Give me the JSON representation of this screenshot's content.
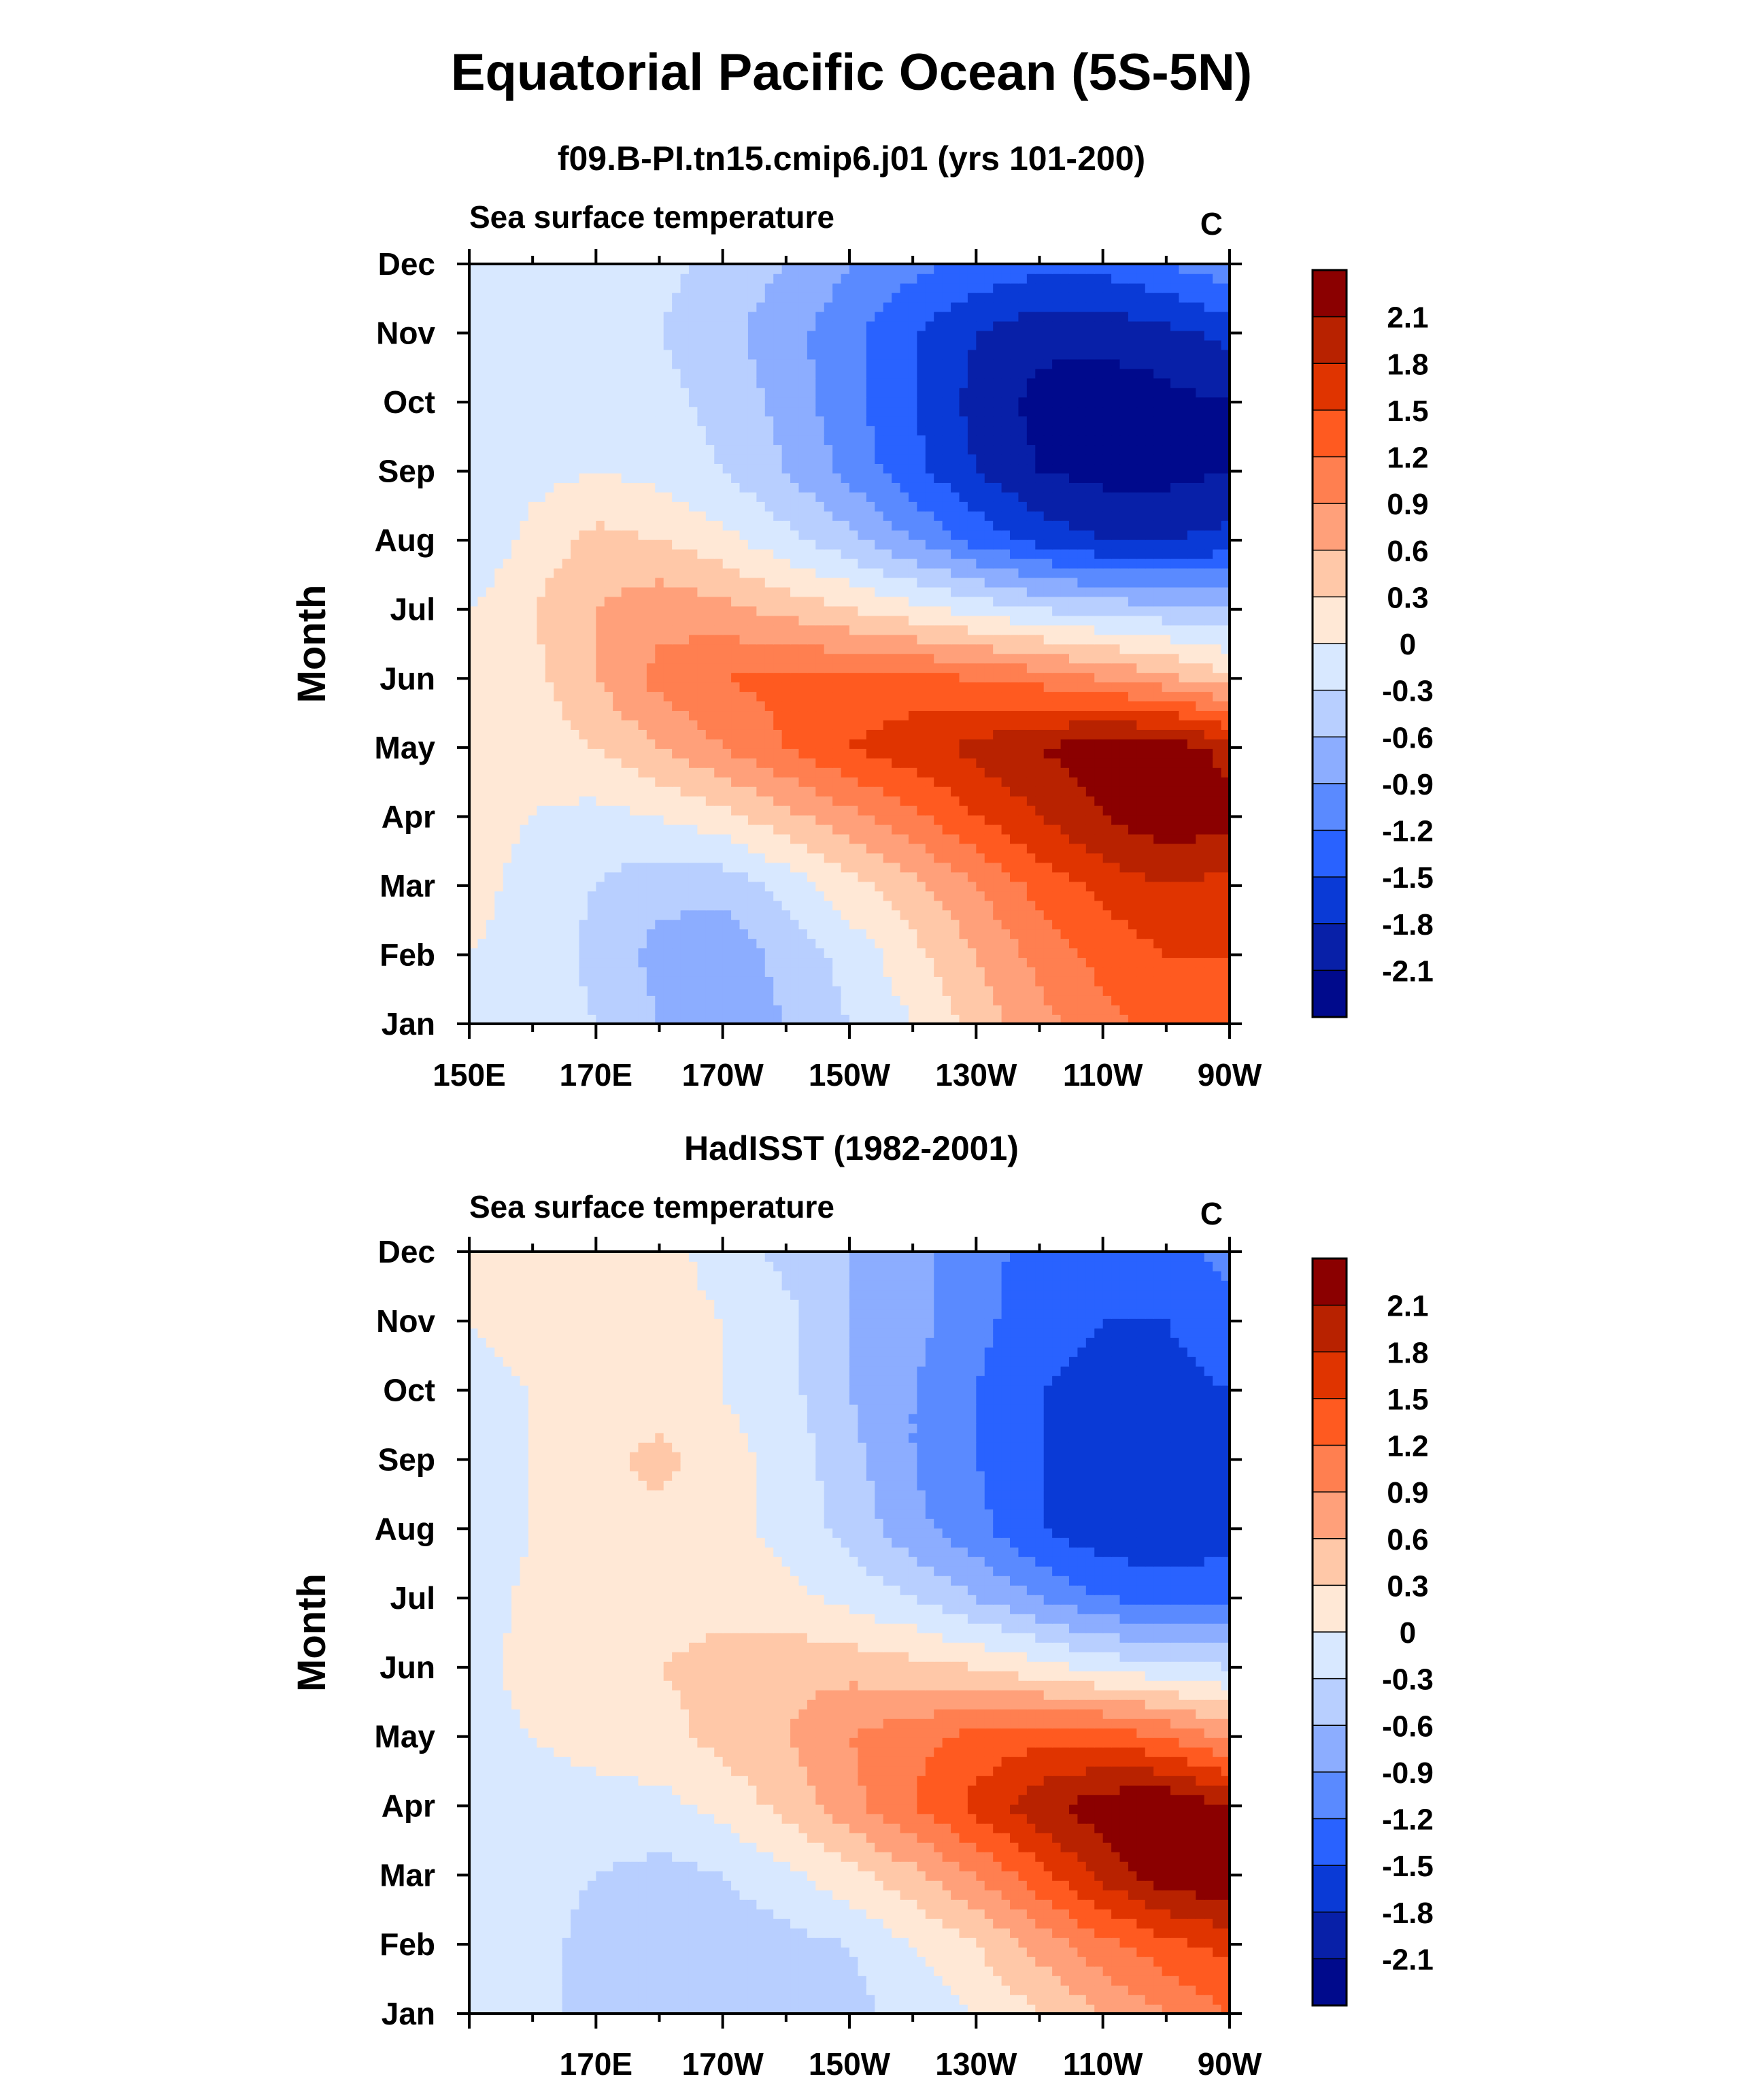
{
  "title": "Equatorial Pacific Ocean (5S-5N)",
  "colorbar_levels": [
    "2.1",
    "1.8",
    "1.5",
    "1.2",
    "0.9",
    "0.6",
    "0.3",
    "0",
    "-0.3",
    "-0.6",
    "-0.9",
    "-1.2",
    "-1.5",
    "-1.8",
    "-2.1"
  ],
  "colorbar_colors": [
    "#8b0000",
    "#b82200",
    "#e03400",
    "#ff5a20",
    "#ff7f50",
    "#ffa07a",
    "#ffc8a8",
    "#ffe8d6",
    "#d8e8ff",
    "#b8cfff",
    "#8cadff",
    "#5a8aff",
    "#2962ff",
    "#0a3ad6",
    "#0820a8",
    "#000a8c"
  ],
  "chart_data": [
    {
      "type": "heatmap",
      "title": "f09.B-PI.tn15.cmip6.j01 (yrs 101-200)",
      "left_label": "Sea surface temperature",
      "units": "C",
      "ylabel": "Month",
      "y_categories": [
        "Jan",
        "Feb",
        "Mar",
        "Apr",
        "May",
        "Jun",
        "Jul",
        "Aug",
        "Sep",
        "Oct",
        "Nov",
        "Dec"
      ],
      "x_tick_labels": [
        "150E",
        "170E",
        "170W",
        "150W",
        "130W",
        "110W",
        "90W"
      ],
      "x_range_lon": [
        150,
        270
      ],
      "levels": [
        -2.1,
        -1.8,
        -1.5,
        -1.2,
        -0.9,
        -0.6,
        -0.3,
        0,
        0.3,
        0.6,
        0.9,
        1.2,
        1.5,
        1.8,
        2.1
      ],
      "lon": [
        150,
        160,
        170,
        180,
        190,
        200,
        210,
        220,
        230,
        240,
        250,
        260,
        270
      ],
      "values": [
        [
          0.0,
          -0.1,
          -0.3,
          -0.6,
          -0.8,
          -0.6,
          -0.3,
          0.0,
          0.4,
          0.8,
          1.1,
          1.3,
          1.3
        ],
        [
          0.0,
          -0.1,
          -0.4,
          -0.7,
          -0.8,
          -0.5,
          -0.2,
          0.2,
          0.6,
          1.0,
          1.3,
          1.5,
          1.5
        ],
        [
          0.1,
          -0.1,
          -0.3,
          -0.5,
          -0.5,
          -0.2,
          0.2,
          0.5,
          0.9,
          1.3,
          1.6,
          1.8,
          1.7
        ],
        [
          0.1,
          0.0,
          -0.1,
          0.0,
          0.2,
          0.5,
          0.8,
          1.1,
          1.5,
          1.8,
          2.1,
          2.3,
          2.2
        ],
        [
          0.1,
          0.1,
          0.3,
          0.6,
          0.9,
          1.2,
          1.5,
          1.7,
          1.9,
          2.1,
          2.3,
          2.3,
          2.0
        ],
        [
          0.1,
          0.2,
          0.6,
          1.0,
          1.2,
          1.3,
          1.3,
          1.3,
          1.2,
          1.1,
          0.9,
          0.7,
          0.4
        ],
        [
          0.0,
          0.3,
          0.6,
          0.8,
          0.7,
          0.5,
          0.3,
          0.1,
          -0.1,
          -0.3,
          -0.4,
          -0.5,
          -0.6
        ],
        [
          -0.3,
          0.1,
          0.4,
          0.3,
          0.1,
          -0.2,
          -0.5,
          -0.9,
          -1.3,
          -1.6,
          -1.8,
          -1.8,
          -1.7
        ],
        [
          -0.1,
          -0.1,
          0.0,
          -0.1,
          -0.3,
          -0.6,
          -1.0,
          -1.4,
          -1.8,
          -2.1,
          -2.2,
          -2.2,
          -2.1
        ],
        [
          -0.1,
          -0.1,
          -0.1,
          -0.2,
          -0.4,
          -0.7,
          -1.1,
          -1.5,
          -1.9,
          -2.2,
          -2.3,
          -2.2,
          -2.1
        ],
        [
          -0.1,
          -0.1,
          -0.1,
          -0.3,
          -0.5,
          -0.8,
          -1.1,
          -1.5,
          -1.8,
          -2.0,
          -2.0,
          -1.9,
          -1.7
        ],
        [
          0.0,
          -0.1,
          -0.1,
          -0.2,
          -0.4,
          -0.6,
          -0.9,
          -1.1,
          -1.3,
          -1.4,
          -1.4,
          -1.2,
          -1.0
        ]
      ]
    },
    {
      "type": "heatmap",
      "title": "HadISST (1982-2001)",
      "left_label": "Sea surface temperature",
      "units": "C",
      "ylabel": "Month",
      "y_categories": [
        "Jan",
        "Feb",
        "Mar",
        "Apr",
        "May",
        "Jun",
        "Jul",
        "Aug",
        "Sep",
        "Oct",
        "Nov",
        "Dec"
      ],
      "x_tick_labels": [
        "170E",
        "170W",
        "150W",
        "130W",
        "110W",
        "90W"
      ],
      "x_range_lon": [
        150,
        270
      ],
      "levels": [
        -2.1,
        -1.8,
        -1.5,
        -1.2,
        -0.9,
        -0.6,
        -0.3,
        0,
        0.3,
        0.6,
        0.9,
        1.2,
        1.5,
        1.8,
        2.1
      ],
      "lon": [
        150,
        160,
        170,
        180,
        190,
        200,
        210,
        220,
        230,
        240,
        250,
        260,
        270
      ],
      "values": [
        [
          0.0,
          -0.2,
          -0.4,
          -0.5,
          -0.5,
          -0.5,
          -0.4,
          -0.2,
          0.0,
          0.3,
          0.6,
          0.9,
          1.2
        ],
        [
          -0.1,
          -0.2,
          -0.4,
          -0.5,
          -0.5,
          -0.4,
          -0.3,
          0.0,
          0.3,
          0.7,
          1.1,
          1.4,
          1.6
        ],
        [
          -0.1,
          -0.2,
          -0.3,
          -0.4,
          -0.3,
          -0.1,
          0.2,
          0.5,
          0.9,
          1.4,
          1.9,
          2.3,
          2.4
        ],
        [
          -0.1,
          -0.1,
          -0.1,
          -0.1,
          0.1,
          0.4,
          0.8,
          1.2,
          1.6,
          2.0,
          2.3,
          2.4,
          2.1
        ],
        [
          -0.1,
          0.0,
          0.1,
          0.2,
          0.4,
          0.6,
          0.9,
          1.1,
          1.3,
          1.4,
          1.4,
          1.2,
          0.8
        ],
        [
          -0.1,
          0.1,
          0.2,
          0.3,
          0.4,
          0.5,
          0.5,
          0.4,
          0.3,
          0.1,
          -0.1,
          -0.2,
          -0.3
        ],
        [
          -0.2,
          0.1,
          0.2,
          0.2,
          0.2,
          0.1,
          -0.1,
          -0.3,
          -0.6,
          -0.9,
          -1.2,
          -1.3,
          -1.3
        ],
        [
          -0.3,
          0.0,
          0.2,
          0.2,
          0.1,
          -0.1,
          -0.4,
          -0.8,
          -1.1,
          -1.5,
          -1.7,
          -1.8,
          -1.6
        ],
        [
          -0.2,
          0.0,
          0.2,
          0.4,
          0.1,
          -0.1,
          -0.5,
          -0.9,
          -1.2,
          -1.5,
          -1.7,
          -1.7,
          -1.6
        ],
        [
          -0.1,
          0.0,
          0.1,
          0.1,
          0.0,
          -0.2,
          -0.6,
          -0.9,
          -1.2,
          -1.5,
          -1.6,
          -1.6,
          -1.5
        ],
        [
          0.0,
          0.1,
          0.1,
          0.1,
          0.0,
          -0.2,
          -0.6,
          -0.8,
          -1.1,
          -1.4,
          -1.5,
          -1.5,
          -1.3
        ],
        [
          0.0,
          0.1,
          0.1,
          0.1,
          -0.1,
          -0.4,
          -0.6,
          -0.8,
          -1.1,
          -1.3,
          -1.4,
          -1.3,
          -1.1
        ]
      ]
    }
  ]
}
